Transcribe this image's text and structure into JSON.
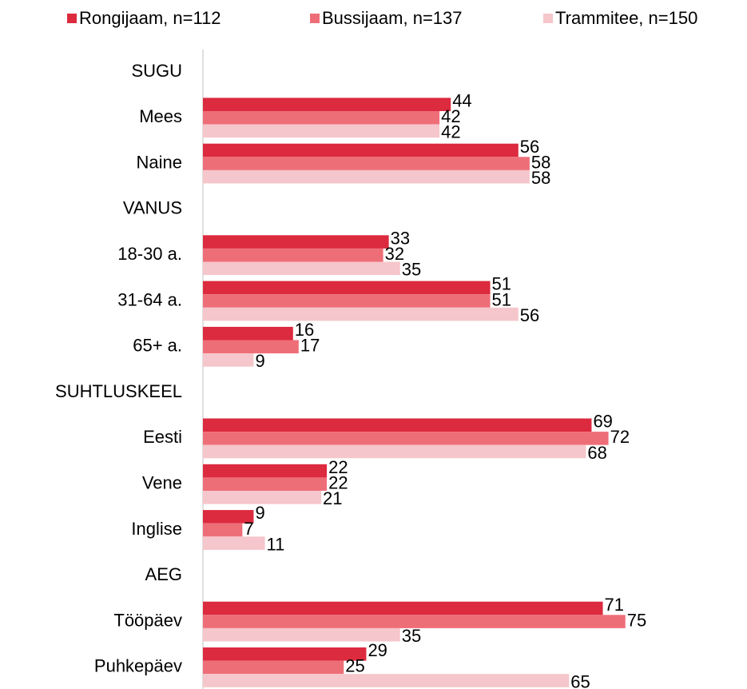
{
  "chart_data": {
    "type": "hbar",
    "legend": "top",
    "categories": [
      "SUGU",
      "Mees",
      "Naine",
      "VANUS",
      "18-30 a.",
      "31-64 a.",
      "65+ a.",
      "SUHTLUSKEEL",
      "Eesti",
      "Vene",
      "Inglise",
      "AEG",
      "Tööpäev",
      "Puhkepäev"
    ],
    "series": [
      {
        "name": "Rongijaam, n=112",
        "color": "#dc2a3e",
        "values": [
          null,
          44,
          56,
          null,
          33,
          51,
          16,
          null,
          69,
          22,
          9,
          null,
          71,
          29
        ]
      },
      {
        "name": "Bussijaam, n=137",
        "color": "#ee6e78",
        "values": [
          null,
          42,
          58,
          null,
          32,
          51,
          17,
          null,
          72,
          22,
          7,
          null,
          75,
          25
        ]
      },
      {
        "name": "Trammitee, n=150",
        "color": "#f5c6cb",
        "values": [
          null,
          42,
          58,
          null,
          35,
          56,
          9,
          null,
          68,
          21,
          11,
          null,
          35,
          65
        ]
      }
    ]
  }
}
